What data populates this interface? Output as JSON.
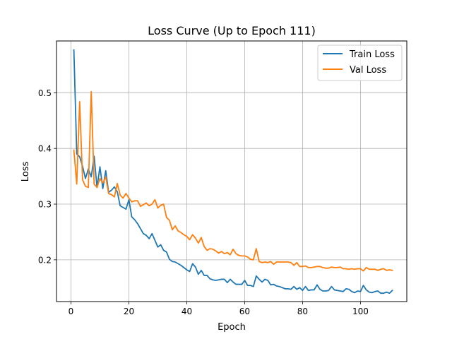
{
  "chart_data": {
    "type": "line",
    "title": "Loss Curve (Up to Epoch 111)",
    "xlabel": "Epoch",
    "ylabel": "Loss",
    "xlim": [
      -5,
      116
    ],
    "ylim": [
      0.125,
      0.593
    ],
    "xticks": [
      0,
      20,
      40,
      60,
      80,
      100
    ],
    "yticks": [
      0.2,
      0.3,
      0.4,
      0.5
    ],
    "ytick_labels": [
      "0.2",
      "0.3",
      "0.4",
      "0.5"
    ],
    "grid": true,
    "legend_position": "top-right",
    "series": [
      {
        "name": "Train Loss",
        "color": "#1f77b4",
        "x_start": 1,
        "values": [
          0.577,
          0.39,
          0.385,
          0.368,
          0.346,
          0.363,
          0.349,
          0.386,
          0.33,
          0.367,
          0.328,
          0.36,
          0.321,
          0.325,
          0.331,
          0.322,
          0.297,
          0.294,
          0.291,
          0.308,
          0.277,
          0.272,
          0.265,
          0.256,
          0.247,
          0.244,
          0.238,
          0.247,
          0.235,
          0.223,
          0.227,
          0.217,
          0.214,
          0.201,
          0.197,
          0.196,
          0.193,
          0.19,
          0.186,
          0.182,
          0.179,
          0.193,
          0.187,
          0.174,
          0.181,
          0.172,
          0.172,
          0.166,
          0.164,
          0.163,
          0.164,
          0.165,
          0.165,
          0.159,
          0.165,
          0.16,
          0.156,
          0.156,
          0.156,
          0.163,
          0.154,
          0.154,
          0.152,
          0.171,
          0.165,
          0.16,
          0.165,
          0.163,
          0.155,
          0.156,
          0.153,
          0.152,
          0.15,
          0.148,
          0.148,
          0.147,
          0.152,
          0.147,
          0.15,
          0.145,
          0.152,
          0.145,
          0.146,
          0.146,
          0.155,
          0.147,
          0.144,
          0.144,
          0.145,
          0.152,
          0.146,
          0.145,
          0.144,
          0.143,
          0.148,
          0.147,
          0.143,
          0.141,
          0.144,
          0.143,
          0.154,
          0.146,
          0.142,
          0.141,
          0.143,
          0.144,
          0.14,
          0.14,
          0.142,
          0.14,
          0.145
        ]
      },
      {
        "name": "Val Loss",
        "color": "#ff7f0e",
        "x_start": 1,
        "values": [
          0.397,
          0.336,
          0.484,
          0.344,
          0.332,
          0.33,
          0.502,
          0.336,
          0.33,
          0.346,
          0.338,
          0.349,
          0.319,
          0.317,
          0.313,
          0.337,
          0.316,
          0.311,
          0.319,
          0.311,
          0.304,
          0.306,
          0.306,
          0.296,
          0.299,
          0.302,
          0.297,
          0.3,
          0.308,
          0.293,
          0.298,
          0.3,
          0.276,
          0.271,
          0.254,
          0.261,
          0.252,
          0.249,
          0.245,
          0.242,
          0.236,
          0.245,
          0.239,
          0.23,
          0.24,
          0.224,
          0.217,
          0.22,
          0.219,
          0.216,
          0.212,
          0.215,
          0.211,
          0.213,
          0.209,
          0.219,
          0.211,
          0.208,
          0.207,
          0.207,
          0.205,
          0.201,
          0.2,
          0.22,
          0.197,
          0.195,
          0.196,
          0.195,
          0.197,
          0.192,
          0.196,
          0.196,
          0.196,
          0.196,
          0.196,
          0.195,
          0.19,
          0.195,
          0.188,
          0.188,
          0.189,
          0.186,
          0.186,
          0.187,
          0.188,
          0.188,
          0.186,
          0.185,
          0.185,
          0.187,
          0.186,
          0.186,
          0.187,
          0.184,
          0.184,
          0.183,
          0.184,
          0.183,
          0.184,
          0.184,
          0.18,
          0.186,
          0.183,
          0.183,
          0.183,
          0.181,
          0.183,
          0.184,
          0.181,
          0.182,
          0.181
        ]
      }
    ]
  }
}
